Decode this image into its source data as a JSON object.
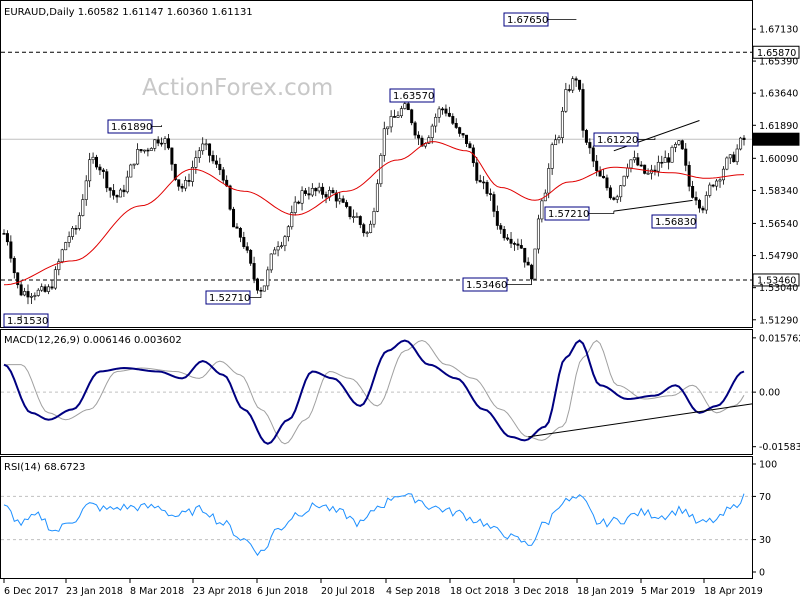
{
  "chart_data": {
    "type": "candlestick",
    "symbol": "EURAUD,Daily",
    "ohlc_header": "1.60582 1.61147 1.60360 1.61131",
    "watermark": "ActionForex.com",
    "x_tick_labels": [
      "6 Dec 2017",
      "23 Jan 2018",
      "8 Mar 2018",
      "23 Apr 2018",
      "6 Jun 2018",
      "20 Jul 2018",
      "4 Sep 2018",
      "18 Oct 2018",
      "3 Dec 2018",
      "18 Jan 2019",
      "5 Mar 2019",
      "18 Apr 2019"
    ],
    "price_axis": {
      "ylim": [
        1.5106,
        1.685
      ],
      "ticks": [
        "1.67130",
        "1.65390",
        "1.63640",
        "1.61890",
        "1.60090",
        "1.58340",
        "1.56540",
        "1.54790",
        "1.53040",
        "1.51290"
      ],
      "current_price": "1.61131",
      "level_lines": [
        {
          "label": "1.65870",
          "value": 1.6587,
          "style": "dashed"
        },
        {
          "label": "1.53460",
          "value": 1.5346,
          "style": "dashed"
        },
        {
          "label": "1.61131",
          "value": 1.61131,
          "style": "solid"
        }
      ]
    },
    "annotations": [
      {
        "text": "1.51530",
        "value": 1.5153,
        "date_index": 5
      },
      {
        "text": "1.61890",
        "value": 1.6189,
        "date_index": 46
      },
      {
        "text": "1.52710",
        "value": 1.5271,
        "date_index": 75
      },
      {
        "text": "1.63570",
        "value": 1.6357,
        "date_index": 117
      },
      {
        "text": "1.53460",
        "value": 1.5346,
        "date_index": 154
      },
      {
        "text": "1.67650",
        "value": 1.6765,
        "date_index": 167
      },
      {
        "text": "1.57210",
        "value": 1.5721,
        "date_index": 178
      },
      {
        "text": "1.61220",
        "value": 1.6122,
        "date_index": 190
      },
      {
        "text": "1.56830",
        "value": 1.5683,
        "date_index": 202
      }
    ],
    "trendlines": [
      {
        "from": [
          178,
          1.605
        ],
        "to": [
          203,
          1.6215
        ]
      },
      {
        "from": [
          178,
          1.5721
        ],
        "to": [
          201,
          1.578
        ]
      }
    ],
    "anchors": [
      [
        0,
        1.56
      ],
      [
        5,
        1.528
      ],
      [
        12,
        1.528
      ],
      [
        20,
        1.56
      ],
      [
        26,
        1.6
      ],
      [
        33,
        1.58
      ],
      [
        40,
        1.605
      ],
      [
        46,
        1.612
      ],
      [
        52,
        1.585
      ],
      [
        58,
        1.607
      ],
      [
        63,
        1.595
      ],
      [
        68,
        1.56
      ],
      [
        75,
        1.53
      ],
      [
        80,
        1.555
      ],
      [
        88,
        1.583
      ],
      [
        95,
        1.582
      ],
      [
        102,
        1.57
      ],
      [
        106,
        1.56
      ],
      [
        112,
        1.62
      ],
      [
        117,
        1.628
      ],
      [
        122,
        1.61
      ],
      [
        128,
        1.628
      ],
      [
        134,
        1.612
      ],
      [
        140,
        1.585
      ],
      [
        146,
        1.56
      ],
      [
        150,
        1.555
      ],
      [
        154,
        1.538
      ],
      [
        157,
        1.58
      ],
      [
        161,
        1.61
      ],
      [
        165,
        1.64
      ],
      [
        167,
        1.645
      ],
      [
        170,
        1.608
      ],
      [
        174,
        1.59
      ],
      [
        178,
        1.58
      ],
      [
        183,
        1.6
      ],
      [
        188,
        1.592
      ],
      [
        193,
        1.6
      ],
      [
        197,
        1.608
      ],
      [
        201,
        1.582
      ],
      [
        204,
        1.575
      ],
      [
        207,
        1.588
      ],
      [
        212,
        1.6
      ],
      [
        216,
        1.611
      ]
    ],
    "ma_anchors": [
      [
        0,
        1.532
      ],
      [
        20,
        1.545
      ],
      [
        40,
        1.575
      ],
      [
        55,
        1.595
      ],
      [
        70,
        1.583
      ],
      [
        85,
        1.57
      ],
      [
        100,
        1.583
      ],
      [
        115,
        1.6
      ],
      [
        125,
        1.61
      ],
      [
        135,
        1.605
      ],
      [
        145,
        1.585
      ],
      [
        155,
        1.578
      ],
      [
        165,
        1.588
      ],
      [
        178,
        1.596
      ],
      [
        195,
        1.593
      ],
      [
        205,
        1.59
      ],
      [
        216,
        1.592
      ]
    ],
    "macd": {
      "header": "MACD(12,26,9) 0.006146 0.003602",
      "ylim": [
        -0.0168,
        0.0163
      ],
      "ticks": [
        "0.015762",
        "0.00",
        "-0.015834"
      ],
      "anchors": [
        [
          0,
          0.008
        ],
        [
          8,
          -0.006
        ],
        [
          13,
          -0.008
        ],
        [
          20,
          -0.005
        ],
        [
          28,
          0.006
        ],
        [
          35,
          0.007
        ],
        [
          45,
          0.006
        ],
        [
          52,
          0.004
        ],
        [
          58,
          0.009
        ],
        [
          64,
          0.005
        ],
        [
          70,
          -0.005
        ],
        [
          77,
          -0.015
        ],
        [
          83,
          -0.008
        ],
        [
          90,
          0.006
        ],
        [
          96,
          0.004
        ],
        [
          104,
          -0.004
        ],
        [
          112,
          0.012
        ],
        [
          117,
          0.015
        ],
        [
          124,
          0.008
        ],
        [
          132,
          0.004
        ],
        [
          140,
          -0.005
        ],
        [
          148,
          -0.013
        ],
        [
          152,
          -0.014
        ],
        [
          158,
          -0.01
        ],
        [
          164,
          0.01
        ],
        [
          168,
          0.015
        ],
        [
          174,
          0.002
        ],
        [
          182,
          -0.002
        ],
        [
          190,
          -0.001
        ],
        [
          196,
          0.002
        ],
        [
          203,
          -0.006
        ],
        [
          208,
          -0.004
        ],
        [
          216,
          0.006
        ]
      ],
      "trendline": {
        "from": [
          153,
          -0.013
        ],
        "to": [
          216,
          -0.004
        ]
      }
    },
    "rsi": {
      "header": "RSI(14) 68.6723",
      "ylim": [
        0,
        100
      ],
      "ticks": [
        "100",
        "70",
        "30",
        "0"
      ],
      "anchors": [
        [
          0,
          60
        ],
        [
          5,
          45
        ],
        [
          10,
          52
        ],
        [
          15,
          38
        ],
        [
          20,
          48
        ],
        [
          25,
          62
        ],
        [
          30,
          58
        ],
        [
          35,
          60
        ],
        [
          45,
          60
        ],
        [
          50,
          52
        ],
        [
          58,
          58
        ],
        [
          64,
          45
        ],
        [
          70,
          30
        ],
        [
          75,
          18
        ],
        [
          80,
          40
        ],
        [
          86,
          55
        ],
        [
          92,
          62
        ],
        [
          98,
          55
        ],
        [
          104,
          45
        ],
        [
          110,
          62
        ],
        [
          115,
          72
        ],
        [
          120,
          68
        ],
        [
          125,
          60
        ],
        [
          132,
          55
        ],
        [
          138,
          48
        ],
        [
          144,
          38
        ],
        [
          150,
          30
        ],
        [
          153,
          25
        ],
        [
          158,
          45
        ],
        [
          163,
          65
        ],
        [
          168,
          68
        ],
        [
          174,
          45
        ],
        [
          180,
          48
        ],
        [
          186,
          55
        ],
        [
          192,
          52
        ],
        [
          198,
          58
        ],
        [
          203,
          45
        ],
        [
          208,
          48
        ],
        [
          212,
          58
        ],
        [
          216,
          69
        ]
      ]
    }
  }
}
